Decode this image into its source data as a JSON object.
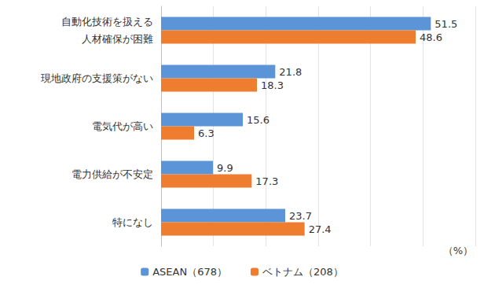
{
  "chart_data": {
    "type": "bar",
    "orientation": "horizontal",
    "categories": [
      "自動化技術を扱える\n人材確保が困難",
      "現地政府の支援策がない",
      "電気代が高い",
      "電力供給が不安定",
      "特になし"
    ],
    "series": [
      {
        "name": "ASEAN（678）",
        "color": "#5b95d8",
        "values": [
          51.5,
          21.8,
          15.6,
          9.9,
          23.7
        ]
      },
      {
        "name": "ベトナム（208）",
        "color": "#ef7d30",
        "values": [
          48.6,
          18.3,
          6.3,
          17.3,
          27.4
        ]
      }
    ],
    "xlim": [
      0,
      60
    ],
    "xticks": [
      0,
      10,
      20,
      30,
      40,
      50,
      60
    ],
    "annotations": [
      "（%）"
    ],
    "grid": true,
    "legend": "bottom",
    "data_labels": true,
    "tick_labels": "y"
  }
}
